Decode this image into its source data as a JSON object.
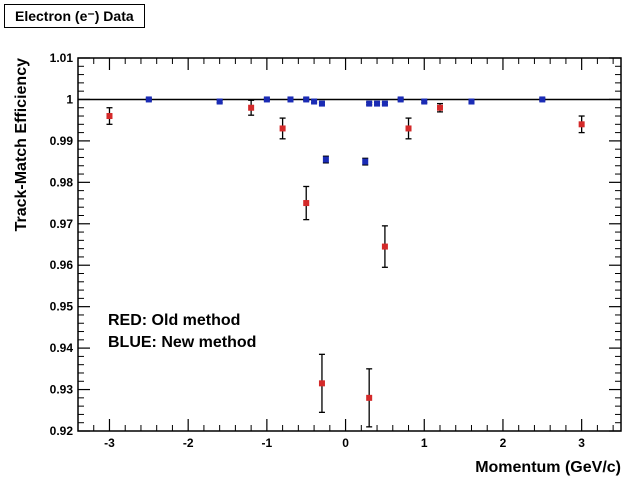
{
  "title": "Electron (e⁻) Data",
  "chart_data": {
    "type": "scatter",
    "title": "Electron (e⁻) Data",
    "xlabel": "Momentum (GeV/c)",
    "ylabel": "Track-Match Efficiency",
    "xlim": [
      -3.4,
      3.5
    ],
    "ylim": [
      0.92,
      1.01
    ],
    "x_ticks": [
      -3,
      -2,
      -1,
      0,
      1,
      2,
      3
    ],
    "x_tick_labels": [
      "-3",
      "-2",
      "-1",
      "0",
      "1",
      "2",
      "3"
    ],
    "y_ticks": [
      0.92,
      0.93,
      0.94,
      0.95,
      0.96,
      0.97,
      0.98,
      0.99,
      1.0,
      1.01
    ],
    "y_tick_labels": [
      "0.92",
      "0.93",
      "0.94",
      "0.95",
      "0.96",
      "0.97",
      "0.98",
      "0.99",
      "1",
      "1.01"
    ],
    "reference_line": 1.0,
    "grid": false,
    "annotations": [
      "RED: Old method",
      "BLUE: New method"
    ],
    "series": [
      {
        "color": "#d42a2a",
        "points": [
          {
            "x": -3.0,
            "y": 0.996,
            "err": 0.002
          },
          {
            "x": -1.2,
            "y": 0.998,
            "err": 0.0018
          },
          {
            "x": -0.8,
            "y": 0.993,
            "err": 0.0025
          },
          {
            "x": -0.5,
            "y": 0.975,
            "err": 0.004
          },
          {
            "x": -0.3,
            "y": 0.9315,
            "err": 0.007
          },
          {
            "x": 0.3,
            "y": 0.928,
            "err": 0.007
          },
          {
            "x": 0.5,
            "y": 0.9645,
            "err": 0.005
          },
          {
            "x": 0.8,
            "y": 0.993,
            "err": 0.0025
          },
          {
            "x": 1.2,
            "y": 0.998,
            "err": 0.001
          },
          {
            "x": 3.0,
            "y": 0.994,
            "err": 0.002
          }
        ]
      },
      {
        "color": "#1a2bb5",
        "points": [
          {
            "x": -2.5,
            "y": 1.0,
            "err": 0.0003
          },
          {
            "x": -1.6,
            "y": 0.9995,
            "err": 0.0003
          },
          {
            "x": -1.0,
            "y": 1.0,
            "err": 0.0003
          },
          {
            "x": -0.7,
            "y": 1.0,
            "err": 0.0003
          },
          {
            "x": -0.5,
            "y": 1.0,
            "err": 0.0003
          },
          {
            "x": -0.4,
            "y": 0.9995,
            "err": 0.0003
          },
          {
            "x": -0.3,
            "y": 0.999,
            "err": 0.0003
          },
          {
            "x": -0.25,
            "y": 0.9855,
            "err": 0.0008
          },
          {
            "x": 0.25,
            "y": 0.985,
            "err": 0.0008
          },
          {
            "x": 0.3,
            "y": 0.999,
            "err": 0.0003
          },
          {
            "x": 0.4,
            "y": 0.999,
            "err": 0.0003
          },
          {
            "x": 0.5,
            "y": 0.999,
            "err": 0.0003
          },
          {
            "x": 0.7,
            "y": 1.0,
            "err": 0.0003
          },
          {
            "x": 1.0,
            "y": 0.9995,
            "err": 0.0003
          },
          {
            "x": 1.6,
            "y": 0.9995,
            "err": 0.0003
          },
          {
            "x": 2.5,
            "y": 1.0,
            "err": 0.0003
          }
        ]
      }
    ]
  }
}
